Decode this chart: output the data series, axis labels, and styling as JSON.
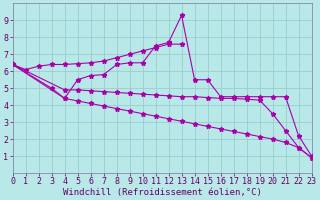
{
  "xlabel": "Windchill (Refroidissement éolien,°C)",
  "background_color": "#b8e8e8",
  "grid_color": "#9acece",
  "line_color": "#aa00aa",
  "xmin": 0,
  "xmax": 23,
  "ymin": 0,
  "ymax": 10,
  "lines": [
    {
      "x": [
        0,
        1,
        2,
        3,
        4,
        5,
        6,
        7,
        8,
        9,
        10,
        11,
        12,
        13
      ],
      "y": [
        6.4,
        6.1,
        6.3,
        6.4,
        6.4,
        6.45,
        6.5,
        6.6,
        6.8,
        7.0,
        7.2,
        7.4,
        7.6,
        7.6
      ]
    },
    {
      "x": [
        0,
        3,
        4,
        5,
        6,
        7,
        8,
        9,
        10,
        11,
        12,
        13,
        14,
        15,
        16,
        17,
        18,
        19,
        20,
        21,
        22,
        23
      ],
      "y": [
        6.4,
        5.0,
        4.4,
        5.5,
        5.75,
        5.8,
        6.4,
        6.5,
        6.5,
        7.5,
        7.7,
        9.3,
        5.5,
        5.5,
        4.5,
        4.5,
        4.5,
        4.5,
        4.5,
        4.5,
        2.2,
        1.0
      ]
    },
    {
      "x": [
        0,
        4,
        5,
        6,
        7,
        8,
        9,
        10,
        11,
        12,
        13,
        14,
        15,
        16,
        17,
        18,
        19,
        20,
        21,
        22,
        23
      ],
      "y": [
        6.4,
        4.9,
        4.9,
        4.85,
        4.8,
        4.75,
        4.7,
        4.65,
        4.6,
        4.55,
        4.5,
        4.5,
        4.45,
        4.4,
        4.4,
        4.35,
        4.3,
        3.5,
        2.5,
        1.5,
        0.9
      ]
    },
    {
      "x": [
        0,
        4,
        5,
        6,
        7,
        8,
        9,
        10,
        11,
        12,
        13,
        14,
        15,
        16,
        17,
        18,
        19,
        20,
        21,
        22,
        23
      ],
      "y": [
        6.4,
        4.4,
        4.25,
        4.1,
        3.95,
        3.8,
        3.65,
        3.5,
        3.35,
        3.2,
        3.05,
        2.9,
        2.75,
        2.6,
        2.45,
        2.3,
        2.15,
        2.0,
        1.8,
        1.5,
        0.9
      ]
    }
  ],
  "xtick_labels": [
    "0",
    "1",
    "2",
    "3",
    "4",
    "5",
    "6",
    "7",
    "8",
    "9",
    "10",
    "11",
    "12",
    "13",
    "14",
    "15",
    "16",
    "17",
    "18",
    "19",
    "20",
    "21",
    "22",
    "23"
  ],
  "ytick_labels": [
    "1",
    "2",
    "3",
    "4",
    "5",
    "6",
    "7",
    "8",
    "9"
  ],
  "xlabel_fontsize": 6.5,
  "tick_fontsize": 6
}
